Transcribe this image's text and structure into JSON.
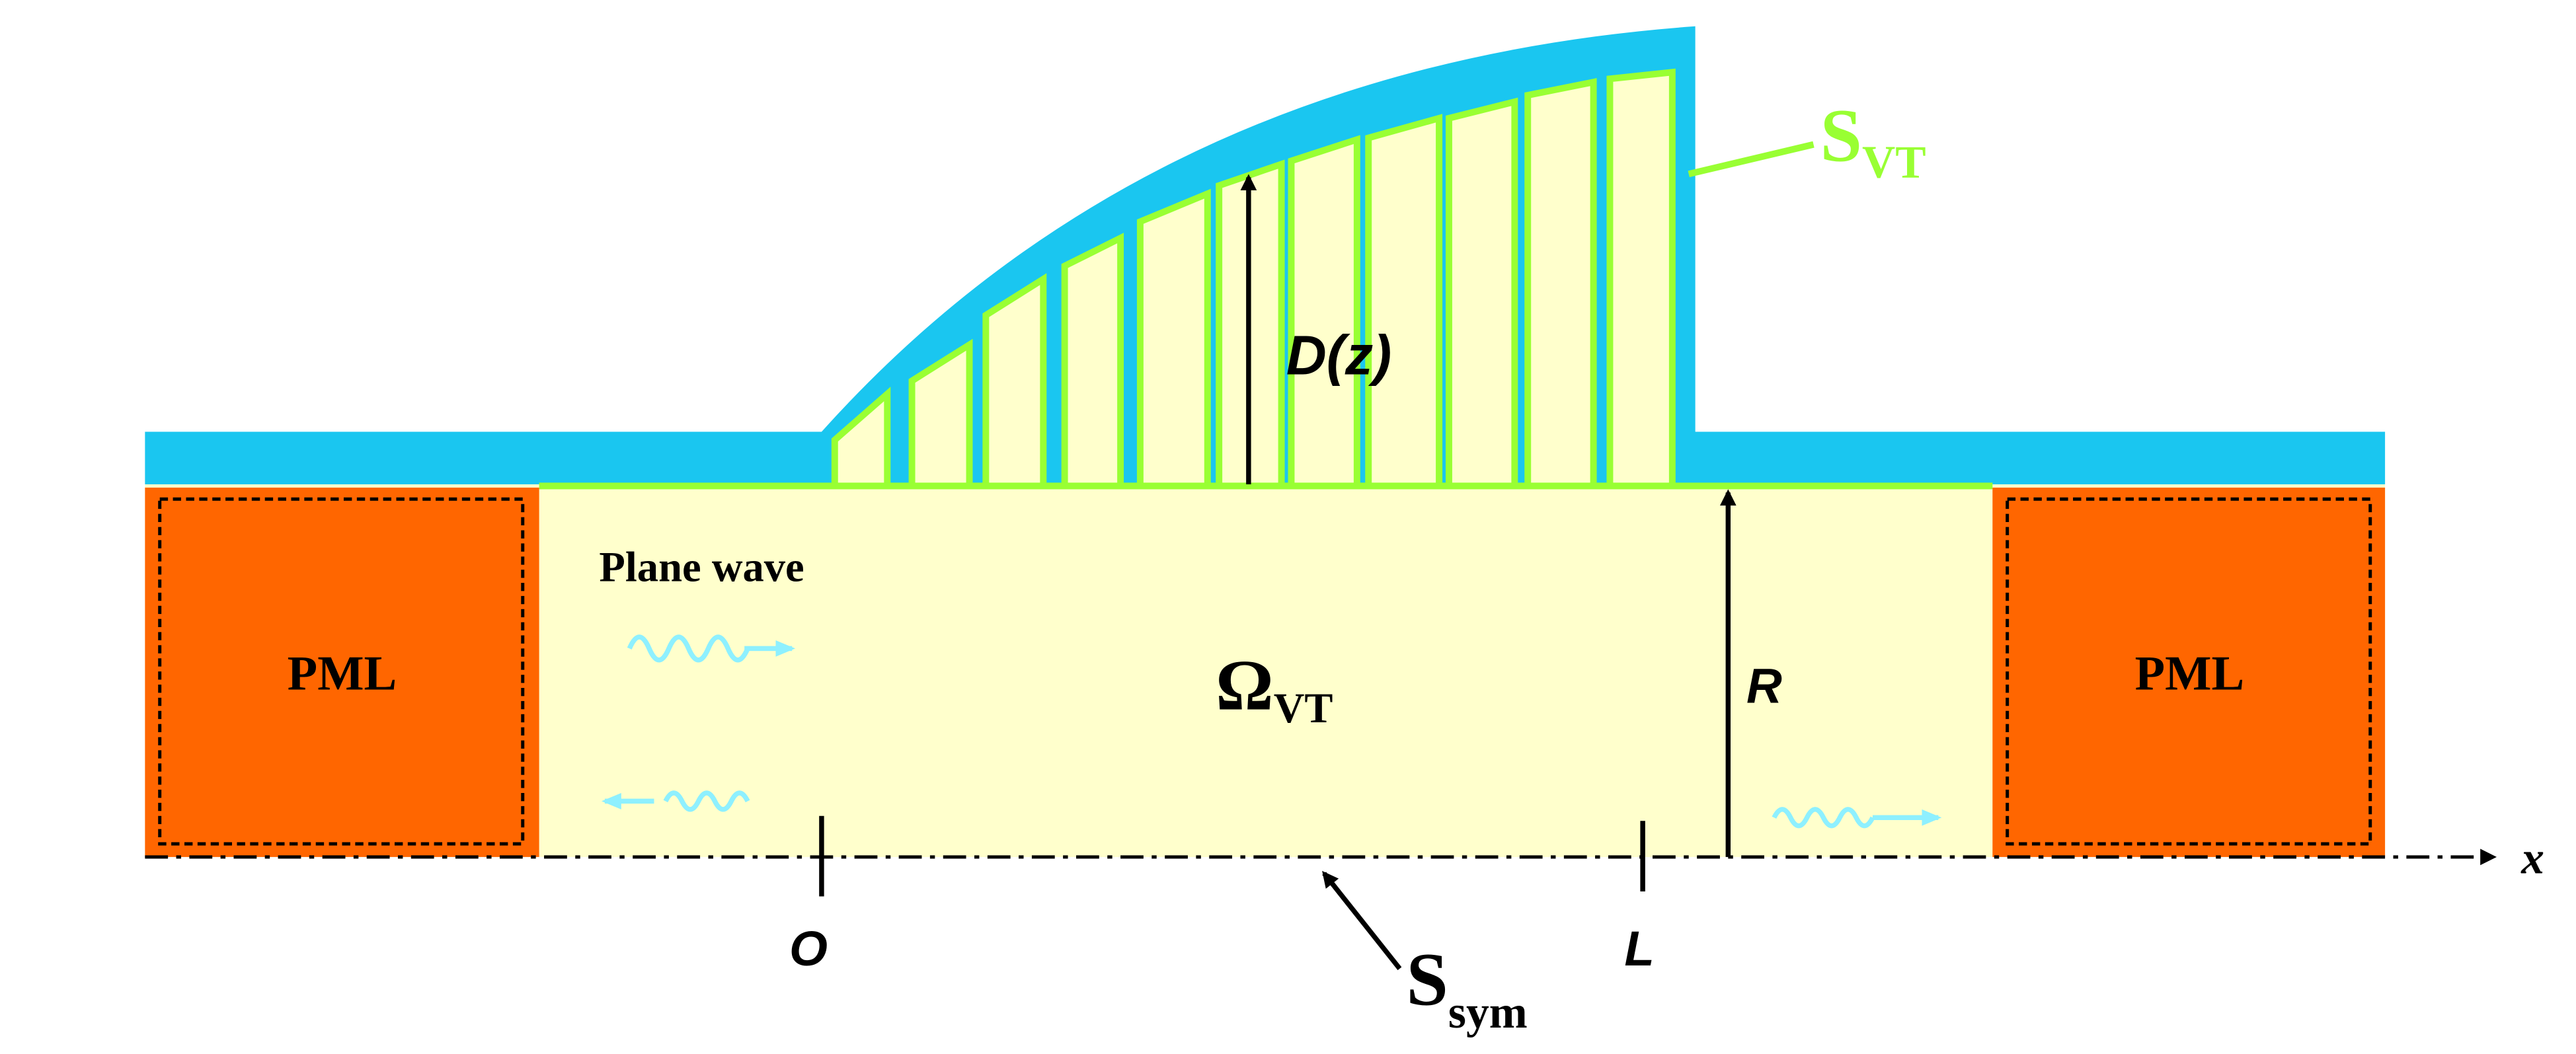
{
  "labels": {
    "pml_left": "PML",
    "pml_right": "PML",
    "plane_wave": "Plane wave",
    "omega": {
      "main": "Ω",
      "sub": "VT"
    },
    "dz": "D(z)",
    "r": "R",
    "s_vt": {
      "main": "S",
      "sub": "VT"
    },
    "s_sym": {
      "main": "S",
      "sub": "sym"
    },
    "origin": "O",
    "length": "L",
    "axis": "x"
  }
}
